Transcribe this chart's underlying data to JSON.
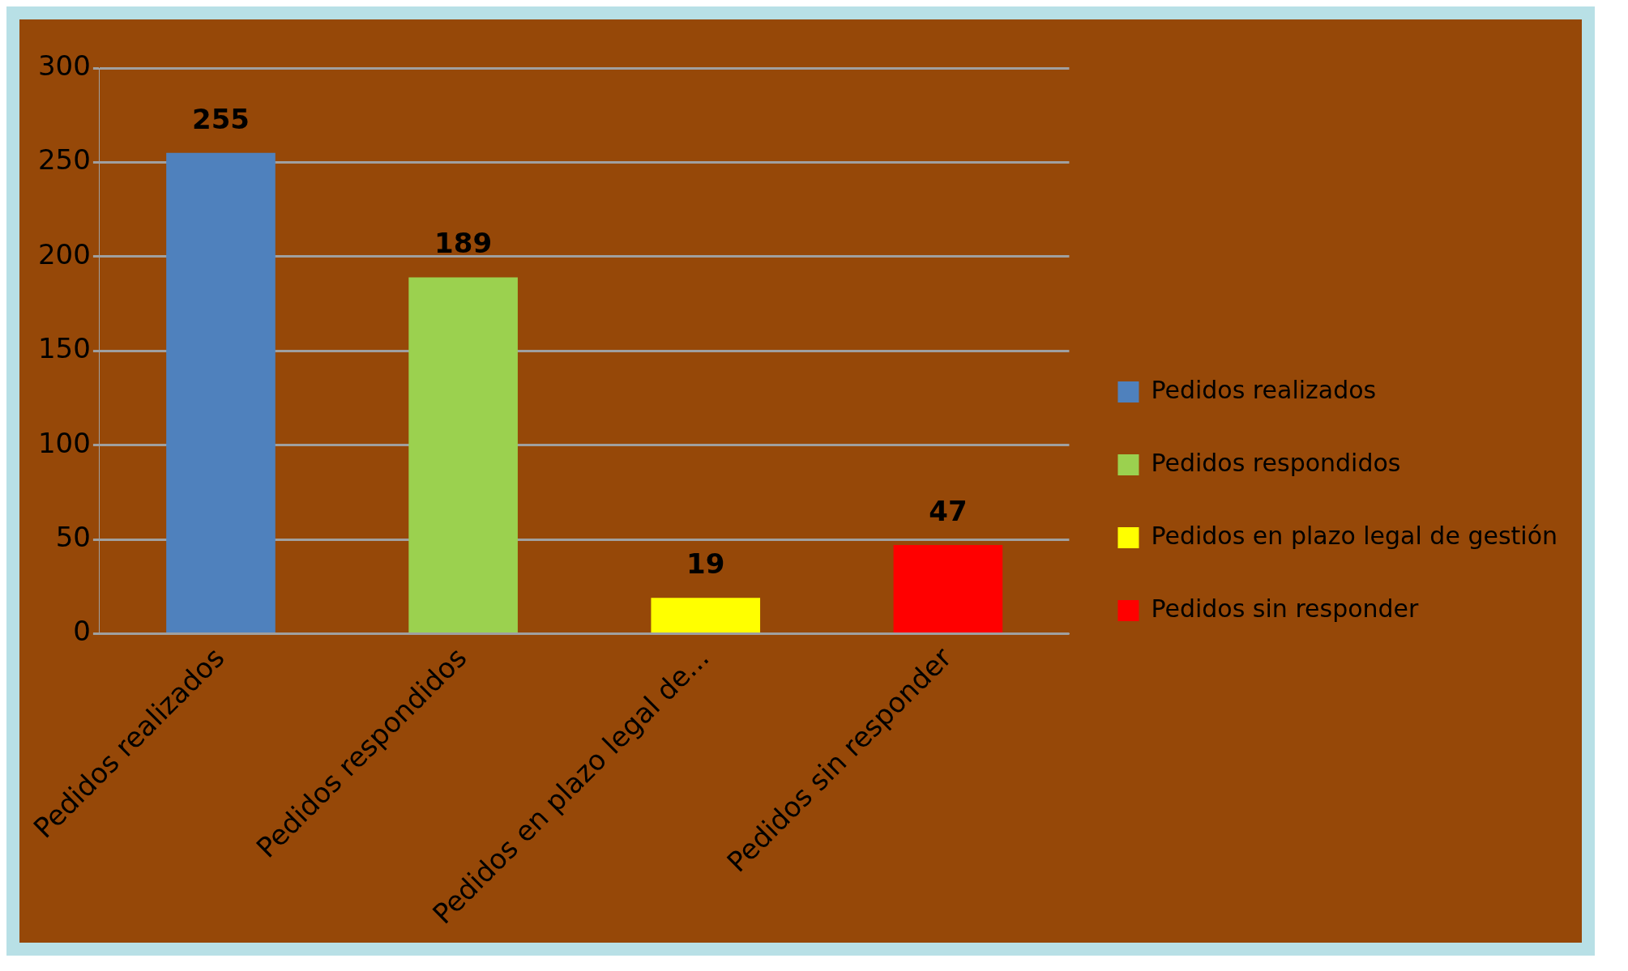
{
  "chart_data": {
    "type": "bar",
    "categories": [
      "Pedidos realizados",
      "Pedidos respondidos",
      "Pedidos en plazo legal de...",
      "Pedidos sin responder"
    ],
    "series": [
      {
        "name": "Pedidos realizados",
        "color": "#4f81bd",
        "values": [
          255,
          null,
          null,
          null
        ]
      },
      {
        "name": "Pedidos respondidos",
        "color": "#9bd14f",
        "values": [
          null,
          189,
          null,
          null
        ]
      },
      {
        "name": "Pedidos en plazo legal de gestión",
        "color": "#ffff00",
        "values": [
          null,
          null,
          19,
          null
        ]
      },
      {
        "name": "Pedidos sin responder",
        "color": "#ff0000",
        "values": [
          null,
          null,
          null,
          47
        ]
      }
    ],
    "stacked": true,
    "ylim": [
      0,
      300
    ],
    "yticks": [
      0,
      50,
      100,
      150,
      200,
      250,
      300
    ],
    "grid": "y",
    "legend": "right",
    "data_labels": true
  }
}
